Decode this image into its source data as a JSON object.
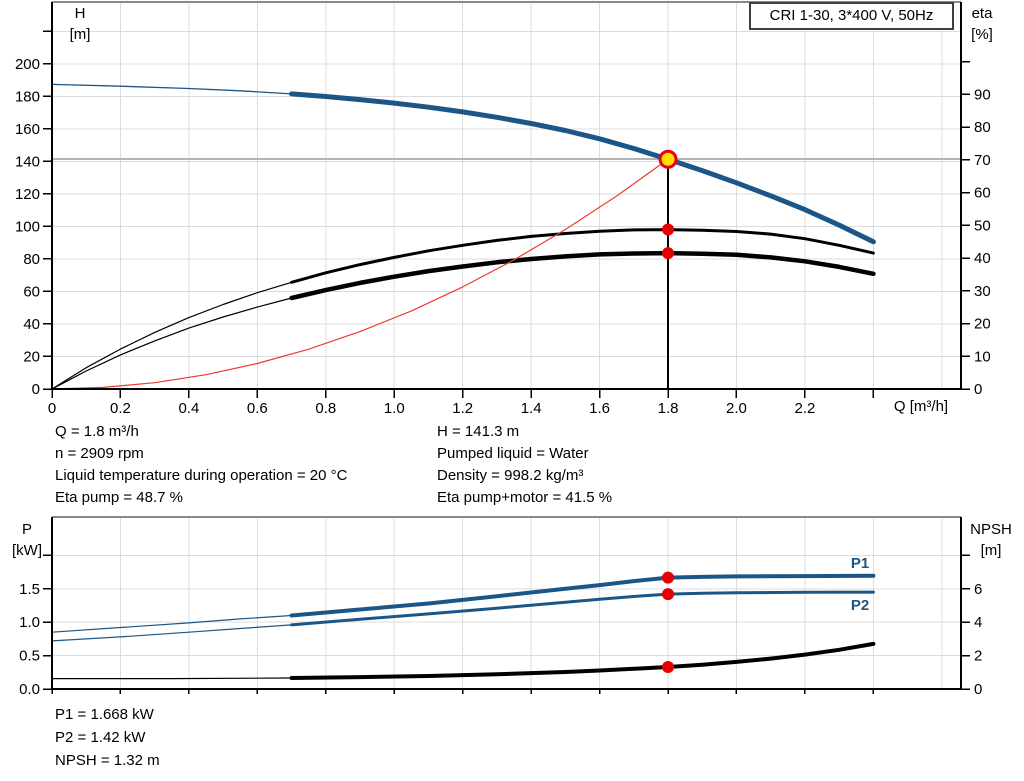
{
  "title_box": "CRI 1-30, 3*400 V, 50Hz",
  "colors": {
    "curve_blue": "#1b5686",
    "marker_red": "#e60000",
    "marker_yellow": "#ffe100",
    "system_red": "#f03a30",
    "grid": "#dcdcdc",
    "ref_gray": "#b3b3b3",
    "frame_top": "#8a8a8a",
    "axis_black": "#000000"
  },
  "axis_titles": {
    "top_left_1": "H",
    "top_left_2": "[m]",
    "top_right_1": "eta",
    "top_right_2": "[%]",
    "x": "Q [m³/h]",
    "bottom_left_1": "P",
    "bottom_left_2": "[kW]",
    "bottom_right_1": "NPSH",
    "bottom_right_2": "[m]"
  },
  "curve_labels": {
    "p1": "P1",
    "p2": "P2"
  },
  "annotations": {
    "top_left": [
      "Q = 1.8 m³/h",
      "n = 2909 rpm",
      "Liquid temperature during operation = 20 °C",
      "Eta pump = 48.7 %"
    ],
    "top_right": [
      "H = 141.3 m",
      "Pumped liquid = Water",
      "Density = 998.2 kg/m³",
      "Eta pump+motor = 41.5 %"
    ],
    "bottom": [
      "P1 = 1.668 kW",
      "P2 = 1.42 kW",
      "NPSH = 1.32 m"
    ]
  },
  "chart_data": [
    {
      "type": "line",
      "title": "Head / efficiency vs flow",
      "x": {
        "min": 0,
        "max": 2.656,
        "ticks": [
          0,
          0.2,
          0.4,
          0.6,
          0.8,
          1.0,
          1.2,
          1.4,
          1.6,
          1.8,
          2.0,
          2.2,
          2.4
        ],
        "labels": [
          "0",
          "0.2",
          "0.4",
          "0.6",
          "0.8",
          "1.0",
          "1.2",
          "1.4",
          "1.6",
          "1.8",
          "2.0",
          "2.2",
          ""
        ],
        "grid": [
          0.2,
          0.4,
          0.6,
          0.8,
          1.0,
          1.2,
          1.4,
          1.6,
          1.8,
          2.0,
          2.2,
          2.4,
          2.6
        ]
      },
      "y_left": {
        "min": 0,
        "max": 238,
        "ticks": [
          0,
          20,
          40,
          60,
          80,
          100,
          120,
          140,
          160,
          180,
          200,
          220
        ],
        "labels": [
          "0",
          "20",
          "40",
          "60",
          "80",
          "100",
          "120",
          "140",
          "160",
          "180",
          "200",
          ""
        ],
        "grid": [
          20,
          40,
          60,
          80,
          100,
          120,
          140,
          160,
          180,
          200,
          220
        ]
      },
      "y_right": {
        "min": 0,
        "max": 118.2,
        "ticks": [
          0,
          10,
          20,
          30,
          40,
          50,
          60,
          70,
          80,
          90,
          100
        ],
        "labels": [
          "0",
          "10",
          "20",
          "30",
          "40",
          "50",
          "60",
          "70",
          "80",
          "90",
          ""
        ],
        "grid": []
      },
      "ref_lines": [
        {
          "layer": "under",
          "type": "h",
          "value": 141.3,
          "q1": 0,
          "q2": 2.656,
          "color": "#b3b3b3",
          "width": 2
        },
        {
          "layer": "over",
          "type": "v",
          "q": 1.8,
          "v1": 0,
          "v2": 141.3,
          "color": "#000000",
          "width": 1.6
        }
      ],
      "series": [
        {
          "name": "head-curve-min-flow",
          "axis": "left",
          "color": "#1b5686",
          "width": 1.3,
          "points": [
            [
              0,
              187.3
            ],
            [
              0.2,
              186.2
            ],
            [
              0.4,
              184.8
            ],
            [
              0.55,
              183.4
            ],
            [
              0.7,
              181.5
            ]
          ]
        },
        {
          "name": "head-curve",
          "axis": "left",
          "color": "#1b5686",
          "width": 5,
          "points": [
            [
              0.7,
              181.5
            ],
            [
              0.8,
              179.9
            ],
            [
              0.9,
              178.0
            ],
            [
              1.0,
              175.8
            ],
            [
              1.1,
              173.3
            ],
            [
              1.2,
              170.4
            ],
            [
              1.3,
              167.1
            ],
            [
              1.4,
              163.3
            ],
            [
              1.5,
              159.0
            ],
            [
              1.6,
              153.9
            ],
            [
              1.7,
              147.9
            ],
            [
              1.8,
              141.3
            ],
            [
              1.9,
              134.3
            ],
            [
              2.0,
              126.8
            ],
            [
              2.1,
              118.8
            ],
            [
              2.2,
              110.3
            ],
            [
              2.3,
              100.8
            ],
            [
              2.4,
              90.5
            ]
          ]
        },
        {
          "name": "eta-pump-curve-min-flow",
          "axis": "right",
          "color": "#000000",
          "width": 1.2,
          "points": [
            [
              0,
              0
            ],
            [
              0.1,
              6.5
            ],
            [
              0.2,
              12.2
            ],
            [
              0.3,
              17.3
            ],
            [
              0.4,
              21.8
            ],
            [
              0.5,
              25.8
            ],
            [
              0.6,
              29.4
            ],
            [
              0.7,
              32.6
            ]
          ]
        },
        {
          "name": "eta-pump-curve",
          "axis": "right",
          "color": "#000000",
          "width": 3,
          "points": [
            [
              0.7,
              32.6
            ],
            [
              0.8,
              35.5
            ],
            [
              0.9,
              38.0
            ],
            [
              1.0,
              40.2
            ],
            [
              1.1,
              42.2
            ],
            [
              1.2,
              43.9
            ],
            [
              1.3,
              45.4
            ],
            [
              1.4,
              46.6
            ],
            [
              1.5,
              47.5
            ],
            [
              1.6,
              48.2
            ],
            [
              1.7,
              48.6
            ],
            [
              1.8,
              48.7
            ],
            [
              1.9,
              48.5
            ],
            [
              2.0,
              48.1
            ],
            [
              2.1,
              47.3
            ],
            [
              2.2,
              45.9
            ],
            [
              2.3,
              43.9
            ],
            [
              2.4,
              41.5
            ]
          ]
        },
        {
          "name": "eta-pump-motor-curve-min-flow",
          "axis": "right",
          "color": "#000000",
          "width": 1.2,
          "points": [
            [
              0,
              0
            ],
            [
              0.1,
              5.5
            ],
            [
              0.2,
              10.4
            ],
            [
              0.3,
              14.7
            ],
            [
              0.4,
              18.6
            ],
            [
              0.5,
              22.0
            ],
            [
              0.6,
              25.0
            ],
            [
              0.7,
              27.8
            ]
          ]
        },
        {
          "name": "eta-pump-motor-curve",
          "axis": "right",
          "color": "#000000",
          "width": 4.5,
          "points": [
            [
              0.7,
              27.8
            ],
            [
              0.8,
              30.2
            ],
            [
              0.9,
              32.4
            ],
            [
              1.0,
              34.3
            ],
            [
              1.1,
              36.0
            ],
            [
              1.2,
              37.4
            ],
            [
              1.3,
              38.7
            ],
            [
              1.4,
              39.7
            ],
            [
              1.5,
              40.5
            ],
            [
              1.6,
              41.1
            ],
            [
              1.7,
              41.4
            ],
            [
              1.8,
              41.5
            ],
            [
              1.9,
              41.3
            ],
            [
              2.0,
              41.0
            ],
            [
              2.1,
              40.2
            ],
            [
              2.2,
              39.0
            ],
            [
              2.3,
              37.3
            ],
            [
              2.4,
              35.2
            ]
          ]
        },
        {
          "name": "system-curve",
          "axis": "left",
          "color": "#f03a30",
          "width": 1.2,
          "points": [
            [
              0,
              0
            ],
            [
              0.15,
              1.0
            ],
            [
              0.3,
              3.9
            ],
            [
              0.45,
              8.8
            ],
            [
              0.6,
              15.7
            ],
            [
              0.75,
              24.5
            ],
            [
              0.9,
              35.3
            ],
            [
              1.05,
              48.0
            ],
            [
              1.2,
              62.8
            ],
            [
              1.35,
              79.4
            ],
            [
              1.5,
              98.1
            ],
            [
              1.65,
              118.7
            ],
            [
              1.8,
              141.3
            ]
          ]
        }
      ],
      "markers": [
        {
          "name": "eta-pump-point",
          "axis": "right",
          "q": 1.8,
          "value": 48.7,
          "r": 6,
          "fill": "#e60000"
        },
        {
          "name": "eta-pump-motor-point",
          "axis": "right",
          "q": 1.8,
          "value": 41.5,
          "r": 6,
          "fill": "#e60000"
        },
        {
          "name": "duty-point",
          "axis": "left",
          "q": 1.8,
          "value": 141.3,
          "r": 8,
          "fill": "#ffe100",
          "stroke": "#e8001c",
          "stroke_width": 3
        }
      ]
    },
    {
      "type": "line",
      "title": "Power / NPSH vs flow",
      "x": {
        "min": 0,
        "max": 2.656,
        "ticks": [
          0,
          0.2,
          0.4,
          0.6,
          0.8,
          1.0,
          1.2,
          1.4,
          1.6,
          1.8,
          2.0,
          2.2,
          2.4
        ],
        "labels": [
          "",
          "",
          "",
          "",
          "",
          "",
          "",
          "",
          "",
          "",
          "",
          "",
          ""
        ],
        "grid": [
          0.2,
          0.4,
          0.6,
          0.8,
          1.0,
          1.2,
          1.4,
          1.6,
          1.8,
          2.0,
          2.2,
          2.4,
          2.6
        ]
      },
      "y_left": {
        "min": 0,
        "max": 2.575,
        "ticks": [
          0,
          0.5,
          1.0,
          1.5,
          2.0
        ],
        "labels": [
          "0.0",
          "0.5",
          "1.0",
          "1.5",
          ""
        ],
        "grid": [
          0.5,
          1.0,
          1.5,
          2.0
        ]
      },
      "y_right": {
        "min": 0,
        "max": 10.3,
        "ticks": [
          0,
          2,
          4,
          6,
          8
        ],
        "labels": [
          "0",
          "2",
          "4",
          "6",
          ""
        ],
        "grid": []
      },
      "ref_lines": [],
      "series": [
        {
          "name": "p1-curve-min-flow",
          "axis": "left",
          "color": "#1b5686",
          "width": 1.2,
          "points": [
            [
              0,
              0.85
            ],
            [
              0.2,
              0.92
            ],
            [
              0.4,
              0.99
            ],
            [
              0.55,
              1.05
            ],
            [
              0.7,
              1.1
            ]
          ]
        },
        {
          "name": "p1-curve",
          "axis": "left",
          "color": "#1b5686",
          "width": 4,
          "points": [
            [
              0.7,
              1.1
            ],
            [
              0.9,
              1.19
            ],
            [
              1.1,
              1.28
            ],
            [
              1.3,
              1.39
            ],
            [
              1.5,
              1.5
            ],
            [
              1.6,
              1.555
            ],
            [
              1.7,
              1.615
            ],
            [
              1.8,
              1.668
            ],
            [
              1.9,
              1.678
            ],
            [
              2.0,
              1.685
            ],
            [
              2.2,
              1.69
            ],
            [
              2.4,
              1.695
            ]
          ]
        },
        {
          "name": "p2-curve-min-flow",
          "axis": "left",
          "color": "#1b5686",
          "width": 1.2,
          "points": [
            [
              0,
              0.72
            ],
            [
              0.2,
              0.78
            ],
            [
              0.4,
              0.85
            ],
            [
              0.55,
              0.905
            ],
            [
              0.7,
              0.96
            ]
          ]
        },
        {
          "name": "p2-curve",
          "axis": "left",
          "color": "#1b5686",
          "width": 3,
          "points": [
            [
              0.7,
              0.96
            ],
            [
              0.9,
              1.045
            ],
            [
              1.1,
              1.125
            ],
            [
              1.3,
              1.21
            ],
            [
              1.5,
              1.3
            ],
            [
              1.6,
              1.345
            ],
            [
              1.7,
              1.385
            ],
            [
              1.8,
              1.42
            ],
            [
              1.9,
              1.432
            ],
            [
              2.0,
              1.44
            ],
            [
              2.2,
              1.447
            ],
            [
              2.4,
              1.45
            ]
          ]
        },
        {
          "name": "npsh-curve-min-flow",
          "axis": "right",
          "color": "#000000",
          "width": 1.2,
          "points": [
            [
              0,
              0.62
            ],
            [
              0.35,
              0.62
            ],
            [
              0.7,
              0.66
            ]
          ]
        },
        {
          "name": "npsh-curve",
          "axis": "right",
          "color": "#000000",
          "width": 4,
          "points": [
            [
              0.7,
              0.66
            ],
            [
              0.9,
              0.71
            ],
            [
              1.1,
              0.78
            ],
            [
              1.3,
              0.88
            ],
            [
              1.5,
              1.02
            ],
            [
              1.6,
              1.11
            ],
            [
              1.7,
              1.21
            ],
            [
              1.8,
              1.32
            ],
            [
              1.9,
              1.45
            ],
            [
              2.0,
              1.62
            ],
            [
              2.1,
              1.82
            ],
            [
              2.2,
              2.06
            ],
            [
              2.3,
              2.35
            ],
            [
              2.4,
              2.7
            ]
          ]
        }
      ],
      "markers": [
        {
          "name": "p1-point",
          "axis": "left",
          "q": 1.8,
          "value": 1.668,
          "r": 6,
          "fill": "#e60000"
        },
        {
          "name": "p2-point",
          "axis": "left",
          "q": 1.8,
          "value": 1.42,
          "r": 6,
          "fill": "#e60000"
        },
        {
          "name": "npsh-point",
          "axis": "right",
          "q": 1.8,
          "value": 1.32,
          "r": 6,
          "fill": "#e60000"
        }
      ]
    }
  ]
}
